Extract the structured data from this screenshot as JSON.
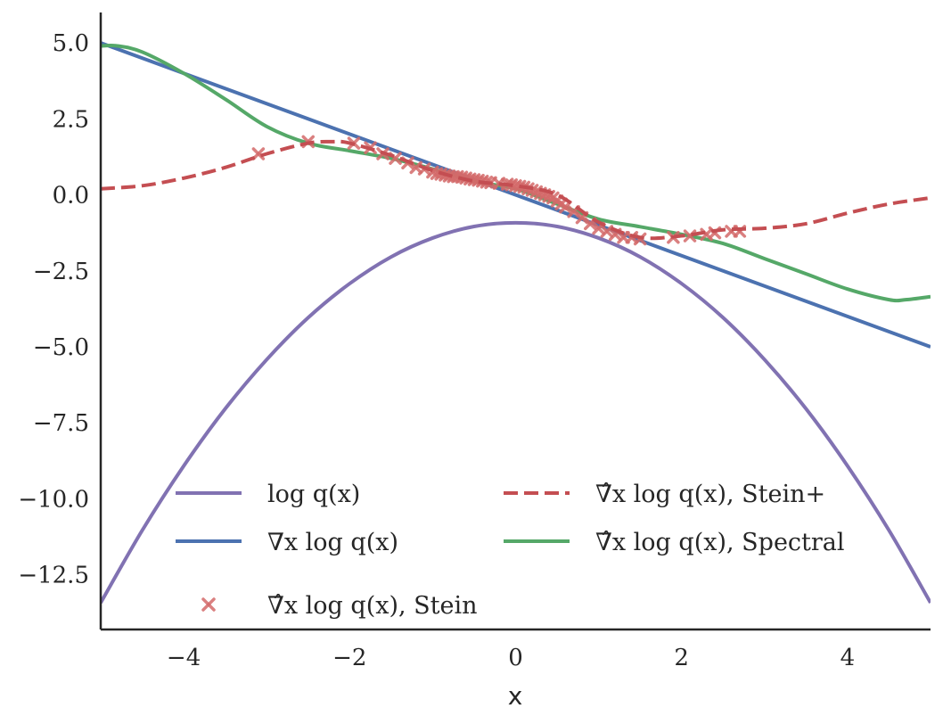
{
  "chart_data": {
    "type": "line",
    "title": "",
    "xlabel": "x",
    "ylabel": "",
    "xlim": [
      -5,
      5
    ],
    "ylim": [
      -14.3,
      6.0
    ],
    "grid": false,
    "legend_position": "lower center",
    "xticks": [
      {
        "value": -4,
        "label": "−4"
      },
      {
        "value": -2,
        "label": "−2"
      },
      {
        "value": 0,
        "label": "0"
      },
      {
        "value": 2,
        "label": "2"
      },
      {
        "value": 4,
        "label": "4"
      }
    ],
    "yticks": [
      {
        "value": 5.0,
        "label": "5.0"
      },
      {
        "value": 2.5,
        "label": "2.5"
      },
      {
        "value": 0.0,
        "label": "0.0"
      },
      {
        "value": -2.5,
        "label": "−2.5"
      },
      {
        "value": -5.0,
        "label": "−5.0"
      },
      {
        "value": -7.5,
        "label": "−7.5"
      },
      {
        "value": -10.0,
        "label": "−10.0"
      },
      {
        "value": -12.5,
        "label": "−12.5"
      }
    ],
    "series": [
      {
        "name": "log q(x)",
        "legend_label": "log q(x)",
        "kind": "line",
        "color": "#8172b2",
        "x": [
          -5,
          -4.5,
          -4,
          -3.5,
          -3,
          -2.5,
          -2,
          -1.5,
          -1,
          -0.5,
          0,
          0.5,
          1,
          1.5,
          2,
          2.5,
          3,
          3.5,
          4,
          4.5,
          5
        ],
        "y": [
          -13.42,
          -11.04,
          -8.92,
          -7.04,
          -5.42,
          -4.04,
          -2.92,
          -2.04,
          -1.42,
          -1.04,
          -0.92,
          -1.04,
          -1.42,
          -2.04,
          -2.92,
          -4.04,
          -5.42,
          -7.04,
          -8.92,
          -11.04,
          -13.42
        ]
      },
      {
        "name": "∇x log q(x)",
        "legend_label": "∇x log q(x)",
        "kind": "line",
        "color": "#4c72b0",
        "x": [
          -5,
          5
        ],
        "y": [
          5.0,
          -5.0
        ]
      },
      {
        "name": "∇̂x log q(x), Stein",
        "legend_label": "∇̂x log q(x), Stein",
        "kind": "scatter",
        "marker": "x",
        "color": "#d46a6a",
        "x": [
          -3.1,
          -2.5,
          -1.95,
          -1.75,
          -1.6,
          -1.45,
          -1.3,
          -1.2,
          -1.1,
          -1.0,
          -0.95,
          -0.9,
          -0.85,
          -0.8,
          -0.75,
          -0.7,
          -0.65,
          -0.6,
          -0.55,
          -0.5,
          -0.45,
          -0.4,
          -0.35,
          -0.3,
          -0.2,
          -0.1,
          -0.05,
          0.0,
          0.05,
          0.1,
          0.15,
          0.2,
          0.25,
          0.3,
          0.35,
          0.4,
          0.45,
          0.5,
          0.55,
          0.6,
          0.7,
          0.8,
          0.9,
          1.0,
          1.1,
          1.2,
          1.3,
          1.4,
          1.5,
          1.9,
          2.1,
          2.3,
          2.4,
          2.6,
          2.7
        ],
        "y": [
          1.35,
          1.75,
          1.7,
          1.55,
          1.35,
          1.2,
          1.05,
          0.9,
          0.85,
          0.75,
          0.7,
          0.68,
          0.65,
          0.62,
          0.6,
          0.6,
          0.58,
          0.55,
          0.52,
          0.5,
          0.48,
          0.45,
          0.42,
          0.4,
          0.38,
          0.35,
          0.33,
          0.3,
          0.28,
          0.25,
          0.2,
          0.15,
          0.1,
          0.05,
          0.0,
          -0.05,
          -0.1,
          -0.2,
          -0.3,
          -0.4,
          -0.55,
          -0.75,
          -0.95,
          -1.1,
          -1.2,
          -1.3,
          -1.4,
          -1.4,
          -1.45,
          -1.4,
          -1.35,
          -1.3,
          -1.25,
          -1.2,
          -1.2
        ]
      },
      {
        "name": "∇̂x log q(x), Stein+",
        "legend_label": "∇̂x log q(x), Stein+",
        "kind": "line",
        "dashed": true,
        "color": "#c44e52",
        "x": [
          -5,
          -4.5,
          -4,
          -3.5,
          -3,
          -2.5,
          -2.2,
          -2,
          -1.5,
          -1,
          -0.5,
          0,
          0.5,
          1,
          1.5,
          2,
          2.5,
          3,
          3.5,
          4,
          4.5,
          5
        ],
        "y": [
          0.2,
          0.3,
          0.55,
          0.9,
          1.35,
          1.7,
          1.75,
          1.7,
          1.3,
          0.8,
          0.45,
          0.3,
          0.0,
          -0.9,
          -1.4,
          -1.35,
          -1.15,
          -1.1,
          -0.95,
          -0.6,
          -0.3,
          -0.1
        ]
      },
      {
        "name": "∇̂x log q(x), Spectral",
        "legend_label": "∇̂x log q(x), Spectral",
        "kind": "line",
        "color": "#55a868",
        "x": [
          -5,
          -4.8,
          -4.5,
          -4,
          -3.5,
          -3,
          -2.5,
          -2,
          -1.5,
          -1,
          -0.5,
          0,
          0.5,
          1,
          1.5,
          2,
          2.5,
          3,
          3.5,
          4,
          4.5,
          4.7,
          5
        ],
        "y": [
          4.9,
          4.9,
          4.7,
          4.0,
          3.15,
          2.25,
          1.7,
          1.45,
          1.2,
          0.85,
          0.45,
          0.2,
          -0.3,
          -0.8,
          -1.05,
          -1.3,
          -1.6,
          -2.1,
          -2.6,
          -3.1,
          -3.45,
          -3.45,
          -3.35
        ]
      }
    ]
  }
}
